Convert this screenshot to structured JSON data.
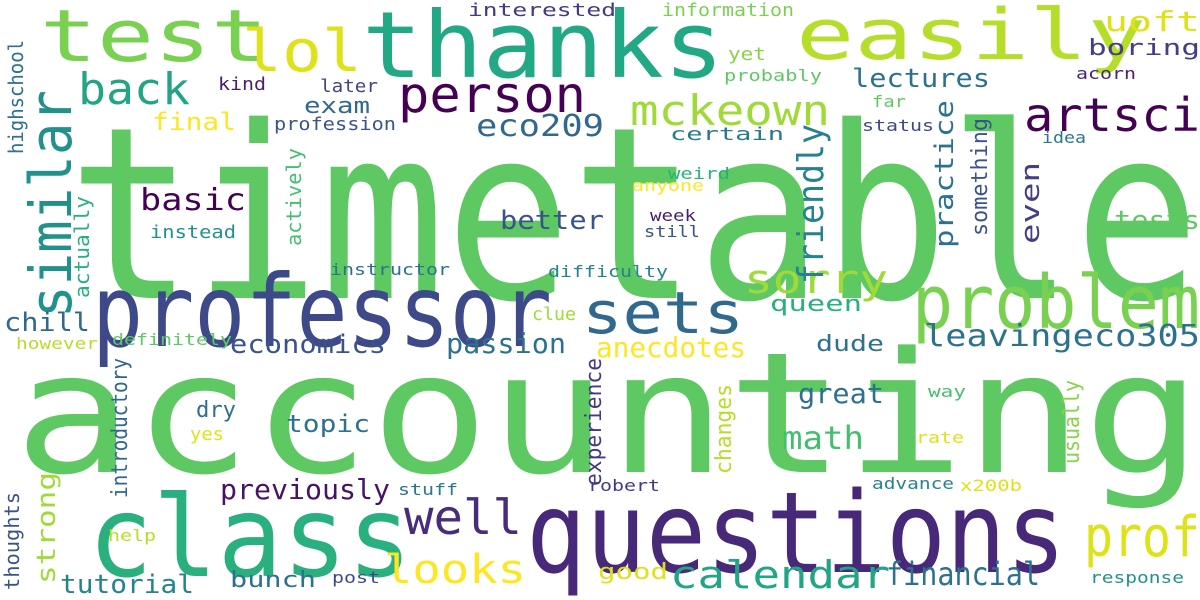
{
  "words": [
    {
      "text": "timetable",
      "color": "#5ec962"
    },
    {
      "text": "accounting",
      "color": "#5ec962"
    },
    {
      "text": "questions",
      "color": "#482878"
    },
    {
      "text": "professor",
      "color": "#3e4989"
    },
    {
      "text": "thanks",
      "color": "#22a884"
    },
    {
      "text": "class",
      "color": "#2ab07f"
    },
    {
      "text": "easily",
      "color": "#b5de2b"
    },
    {
      "text": "test",
      "color": "#7ad151"
    },
    {
      "text": "problem",
      "color": "#7ad151"
    },
    {
      "text": "person",
      "color": "#440154"
    },
    {
      "text": "sets",
      "color": "#31688e"
    },
    {
      "text": "lol",
      "color": "#dde318"
    },
    {
      "text": "artsci",
      "color": "#440154"
    },
    {
      "text": "mckeown",
      "color": "#a0da39"
    },
    {
      "text": "similar",
      "color": "#21918c"
    },
    {
      "text": "back",
      "color": "#21a585"
    },
    {
      "text": "sorry",
      "color": "#a0da39"
    },
    {
      "text": "prof",
      "color": "#dde318"
    },
    {
      "text": "looks",
      "color": "#fde725"
    },
    {
      "text": "calendar",
      "color": "#21a585"
    },
    {
      "text": "well",
      "color": "#472d7b"
    },
    {
      "text": "financial",
      "color": "#2c728e"
    },
    {
      "text": "leavingeco305",
      "color": "#2c728e"
    },
    {
      "text": "basic",
      "color": "#440154"
    },
    {
      "text": "eco209",
      "color": "#31688e"
    },
    {
      "text": "math",
      "color": "#44bf70"
    },
    {
      "text": "previously",
      "color": "#471365"
    },
    {
      "text": "practice",
      "color": "#2c728e"
    },
    {
      "text": "friendly",
      "color": "#26828e"
    },
    {
      "text": "economics",
      "color": "#3b528b"
    },
    {
      "text": "passion",
      "color": "#2c728e"
    },
    {
      "text": "anecdotes",
      "color": "#fde725"
    },
    {
      "text": "great",
      "color": "#2c728e"
    },
    {
      "text": "lectures",
      "color": "#2c728e"
    },
    {
      "text": "better",
      "color": "#3b528b"
    },
    {
      "text": "uoft",
      "color": "#dde318"
    },
    {
      "text": "boring",
      "color": "#433e85"
    },
    {
      "text": "tutorial",
      "color": "#26828e"
    },
    {
      "text": "bunch",
      "color": "#2c728e"
    },
    {
      "text": "topic",
      "color": "#2c728e"
    },
    {
      "text": "exam",
      "color": "#31688e"
    },
    {
      "text": "dude",
      "color": "#2c728e"
    },
    {
      "text": "queen",
      "color": "#2ab07f"
    },
    {
      "text": "tests",
      "color": "#5ec962"
    },
    {
      "text": "even",
      "color": "#433e85"
    },
    {
      "text": "chill",
      "color": "#31688e"
    },
    {
      "text": "strong",
      "color": "#a0da39"
    },
    {
      "text": "good",
      "color": "#dde318"
    },
    {
      "text": "dry",
      "color": "#2c728e"
    },
    {
      "text": "final",
      "color": "#fde725"
    },
    {
      "text": "interested",
      "color": "#443983"
    },
    {
      "text": "information",
      "color": "#7ad151"
    },
    {
      "text": "later",
      "color": "#414487"
    },
    {
      "text": "kind",
      "color": "#481f70"
    },
    {
      "text": "profession",
      "color": "#3b528b"
    },
    {
      "text": "certain",
      "color": "#2a788e"
    },
    {
      "text": "yet",
      "color": "#86d549"
    },
    {
      "text": "probably",
      "color": "#5ec962"
    },
    {
      "text": "acorn",
      "color": "#482475"
    },
    {
      "text": "far",
      "color": "#5ec962"
    },
    {
      "text": "status",
      "color": "#3e4989"
    },
    {
      "text": "idea",
      "color": "#2a788e"
    },
    {
      "text": "weird",
      "color": "#2ab07f"
    },
    {
      "text": "anyone",
      "color": "#fde725"
    },
    {
      "text": "week",
      "color": "#481f70"
    },
    {
      "text": "still",
      "color": "#3b528b"
    },
    {
      "text": "instead",
      "color": "#21918c"
    },
    {
      "text": "instructor",
      "color": "#2c728e"
    },
    {
      "text": "difficulty",
      "color": "#26828e"
    },
    {
      "text": "clue",
      "color": "#a0da39"
    },
    {
      "text": "definitely",
      "color": "#5ec962"
    },
    {
      "text": "however",
      "color": "#b5de2b"
    },
    {
      "text": "yes",
      "color": "#dde318"
    },
    {
      "text": "way",
      "color": "#44bf70"
    },
    {
      "text": "rate",
      "color": "#dde318"
    },
    {
      "text": "stuff",
      "color": "#2a788e"
    },
    {
      "text": "robert",
      "color": "#443983"
    },
    {
      "text": "advance",
      "color": "#26828e"
    },
    {
      "text": "x200b",
      "color": "#dde318"
    },
    {
      "text": "help",
      "color": "#b5de2b"
    },
    {
      "text": "post",
      "color": "#3e4989"
    },
    {
      "text": "response",
      "color": "#21918c"
    },
    {
      "text": "highschool",
      "color": "#2c728e"
    },
    {
      "text": "actually",
      "color": "#2ab07f"
    },
    {
      "text": "actively",
      "color": "#44bf70"
    },
    {
      "text": "something",
      "color": "#3b528b"
    },
    {
      "text": "introductory",
      "color": "#31688e"
    },
    {
      "text": "experience",
      "color": "#443983"
    },
    {
      "text": "changes",
      "color": "#b5de2b"
    },
    {
      "text": "usually",
      "color": "#86d549"
    },
    {
      "text": "thoughts",
      "color": "#3b528b"
    }
  ]
}
